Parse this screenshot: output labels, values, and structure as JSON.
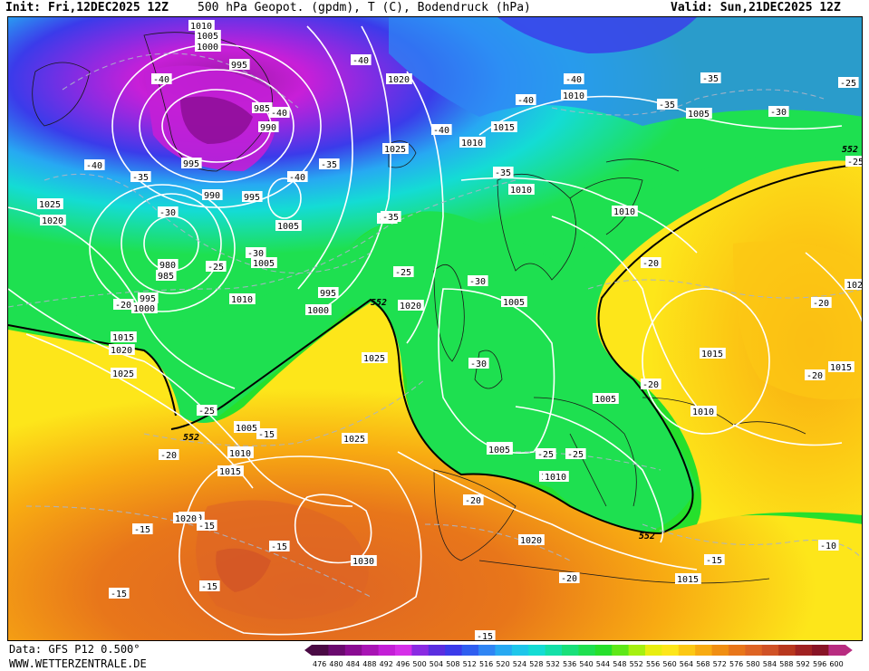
{
  "header": {
    "init": "Init: Fri,12DEC2025 12Z",
    "title": "500 hPa Geopot. (gpdm), T (C), Bodendruck (hPa)",
    "valid": "Valid: Sun,21DEC2025 12Z"
  },
  "footer": {
    "data_source": "Data: GFS P12 0.500°",
    "website": "WWW.WETTERZENTRALE.DE"
  },
  "legend": {
    "values": [
      "476",
      "480",
      "484",
      "488",
      "492",
      "496",
      "500",
      "504",
      "508",
      "512",
      "516",
      "520",
      "524",
      "528",
      "532",
      "536",
      "540",
      "544",
      "548",
      "552",
      "556",
      "560",
      "564",
      "568",
      "572",
      "576",
      "580",
      "584",
      "588",
      "592",
      "596",
      "600"
    ],
    "colors": [
      "#4a0a44",
      "#6a0a6e",
      "#8a0c92",
      "#a814b4",
      "#c31fd6",
      "#d52fe8",
      "#8a2be2",
      "#5a2ee0",
      "#3b3bea",
      "#2f5ef0",
      "#2f85f4",
      "#27a9f2",
      "#1ec6ea",
      "#14dcd4",
      "#14e0a8",
      "#18e07a",
      "#1ee050",
      "#26e02c",
      "#5ee818",
      "#a6f010",
      "#e8ee10",
      "#fde61a",
      "#fcc814",
      "#f8ab12",
      "#f08e12",
      "#e8761a",
      "#de6424",
      "#d05226",
      "#b8381e",
      "#a02222",
      "#881426",
      "#b82c80"
    ]
  },
  "map_labels": {
    "isobars": [
      {
        "id": "p1",
        "text": "1010"
      },
      {
        "id": "p2",
        "text": "1005"
      },
      {
        "id": "p3",
        "text": "1000"
      },
      {
        "id": "p4",
        "text": "995"
      },
      {
        "id": "p5",
        "text": "985"
      },
      {
        "id": "p6",
        "text": "990"
      },
      {
        "id": "p7",
        "text": "995"
      },
      {
        "id": "p8",
        "text": "990"
      },
      {
        "id": "p9",
        "text": "995"
      },
      {
        "id": "p10",
        "text": "1005"
      },
      {
        "id": "p11",
        "text": "1005"
      },
      {
        "id": "p12",
        "text": "980"
      },
      {
        "id": "p13",
        "text": "985"
      },
      {
        "id": "p14",
        "text": "995"
      },
      {
        "id": "p15",
        "text": "1000"
      },
      {
        "id": "p16",
        "text": "1010"
      },
      {
        "id": "p17",
        "text": "1000"
      },
      {
        "id": "p18",
        "text": "995"
      },
      {
        "id": "p19",
        "text": "1025"
      },
      {
        "id": "p20",
        "text": "1020"
      },
      {
        "id": "p21",
        "text": "1015"
      },
      {
        "id": "p22",
        "text": "1020"
      },
      {
        "id": "p23",
        "text": "1025"
      },
      {
        "id": "p24",
        "text": "1020"
      },
      {
        "id": "p25",
        "text": "1025"
      },
      {
        "id": "p26",
        "text": "1010"
      },
      {
        "id": "p27",
        "text": "1015"
      },
      {
        "id": "p28",
        "text": "1010"
      },
      {
        "id": "p29",
        "text": "1010"
      },
      {
        "id": "p30",
        "text": "1005"
      },
      {
        "id": "p31",
        "text": "1010"
      },
      {
        "id": "p32",
        "text": "1005"
      },
      {
        "id": "p33",
        "text": "1010"
      },
      {
        "id": "p34",
        "text": "1015"
      },
      {
        "id": "p35",
        "text": "1020"
      },
      {
        "id": "p36",
        "text": "1005"
      },
      {
        "id": "p37",
        "text": "1005"
      },
      {
        "id": "p38",
        "text": "1010"
      },
      {
        "id": "p39",
        "text": "1020"
      },
      {
        "id": "p40",
        "text": "1025"
      },
      {
        "id": "p41",
        "text": "1015"
      },
      {
        "id": "p42",
        "text": "1020"
      },
      {
        "id": "p43",
        "text": "1005"
      },
      {
        "id": "p44",
        "text": "1010"
      },
      {
        "id": "p45",
        "text": "1015"
      },
      {
        "id": "p46",
        "text": "1020"
      },
      {
        "id": "p47",
        "text": "1025"
      },
      {
        "id": "p48",
        "text": "1030"
      },
      {
        "id": "p49",
        "text": "1020"
      },
      {
        "id": "p50",
        "text": "1015"
      },
      {
        "id": "p51",
        "text": "1010"
      },
      {
        "id": "p52",
        "text": "1005"
      },
      {
        "id": "p53",
        "text": "1015"
      },
      {
        "id": "p54",
        "text": "1010"
      },
      {
        "id": "p55",
        "text": "1005"
      }
    ],
    "temperatures": [
      {
        "id": "t1",
        "text": "-40"
      },
      {
        "id": "t2",
        "text": "-40"
      },
      {
        "id": "t3",
        "text": "-40"
      },
      {
        "id": "t4",
        "text": "-40"
      },
      {
        "id": "t5",
        "text": "-35"
      },
      {
        "id": "t6",
        "text": "-40"
      },
      {
        "id": "t7",
        "text": "-35"
      },
      {
        "id": "t8",
        "text": "-25"
      },
      {
        "id": "t9",
        "text": "-40"
      },
      {
        "id": "t10",
        "text": "-35"
      },
      {
        "id": "t11",
        "text": "-40"
      },
      {
        "id": "t12",
        "text": "-35"
      },
      {
        "id": "t13",
        "text": "-30"
      },
      {
        "id": "t14",
        "text": "-25"
      },
      {
        "id": "t15",
        "text": "-40"
      },
      {
        "id": "t16",
        "text": "-35"
      },
      {
        "id": "t17",
        "text": "-30"
      },
      {
        "id": "t18",
        "text": "-30"
      },
      {
        "id": "t19",
        "text": "-25"
      },
      {
        "id": "t20",
        "text": "-30"
      },
      {
        "id": "t21",
        "text": "-25"
      },
      {
        "id": "t22",
        "text": "-30"
      },
      {
        "id": "t23",
        "text": "-35"
      },
      {
        "id": "t24",
        "text": "-30"
      },
      {
        "id": "t25",
        "text": "-20"
      },
      {
        "id": "t26",
        "text": "-20"
      },
      {
        "id": "t27",
        "text": "-20"
      },
      {
        "id": "t28",
        "text": "-25"
      },
      {
        "id": "t29",
        "text": "-20"
      },
      {
        "id": "t30",
        "text": "-15"
      },
      {
        "id": "t31",
        "text": "-15"
      },
      {
        "id": "t32",
        "text": "-20"
      },
      {
        "id": "t33",
        "text": "-25"
      },
      {
        "id": "t34",
        "text": "-25"
      },
      {
        "id": "t35",
        "text": "-20"
      },
      {
        "id": "t36",
        "text": "-15"
      },
      {
        "id": "t37",
        "text": "-15"
      },
      {
        "id": "t38",
        "text": "-15"
      },
      {
        "id": "t39",
        "text": "-15"
      },
      {
        "id": "t40",
        "text": "-15"
      },
      {
        "id": "t41",
        "text": "-20"
      },
      {
        "id": "t42",
        "text": "-15"
      },
      {
        "id": "t43",
        "text": "-10"
      },
      {
        "id": "t44",
        "text": "-15"
      },
      {
        "id": "t45",
        "text": "-20"
      },
      {
        "id": "t46",
        "text": "-20"
      }
    ],
    "geopotential": [
      {
        "id": "g1",
        "text": "552"
      },
      {
        "id": "g2",
        "text": "552"
      },
      {
        "id": "g3",
        "text": "552"
      },
      {
        "id": "g4",
        "text": "552"
      }
    ]
  }
}
